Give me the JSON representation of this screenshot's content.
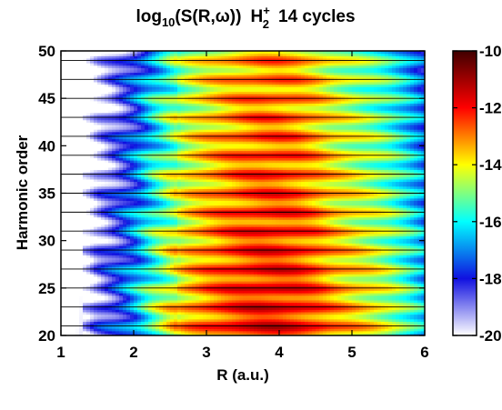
{
  "chart_data": {
    "type": "heatmap",
    "title": {
      "prefix": "log",
      "prefix_sub": "10",
      "func": "(S(R,ω))",
      "species": "H",
      "species_sub": "2",
      "species_sup": "+",
      "suffix": "14 cycles"
    },
    "xlabel": "R (a.u.)",
    "ylabel": "Harmonic order",
    "xlim": [
      1,
      6
    ],
    "ylim": [
      20,
      50
    ],
    "x_ticks": [
      1,
      2,
      3,
      4,
      5,
      6
    ],
    "y_ticks": [
      20,
      25,
      30,
      35,
      40,
      45,
      50
    ],
    "colorbar": {
      "range": [
        -20,
        -10
      ],
      "ticks": [
        -20,
        -18,
        -16,
        -14,
        -12,
        -10
      ],
      "colormap": [
        "#ffffff",
        "#1010e0",
        "#00ffff",
        "#ffff00",
        "#ff0000",
        "#400000"
      ]
    },
    "odd_harmonic_lines": [
      21,
      23,
      25,
      27,
      29,
      31,
      33,
      35,
      37,
      39,
      41,
      43,
      45,
      47,
      49
    ],
    "profile_R": [
      1.0,
      1.2,
      1.35,
      1.5,
      1.75,
      2.0,
      2.25,
      2.5,
      2.75,
      3.0,
      3.25,
      3.5,
      3.75,
      4.0,
      4.25,
      4.5,
      4.75,
      5.0,
      5.25,
      5.5,
      5.75,
      6.0
    ],
    "profile_log10S": [
      -20,
      -20,
      -19.6,
      -18.6,
      -17.6,
      -16.4,
      -15.0,
      -13.9,
      -13.1,
      -12.6,
      -12.2,
      -11.9,
      -11.7,
      -11.7,
      -11.9,
      -12.3,
      -12.9,
      -13.3,
      -13.7,
      -14.2,
      -15.0,
      -16.0
    ]
  }
}
